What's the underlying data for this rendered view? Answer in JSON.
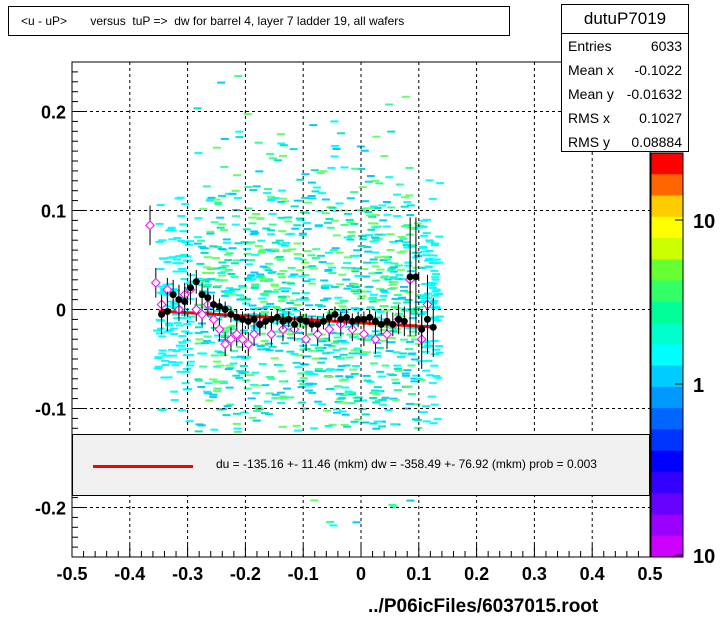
{
  "title": "<u - uP>       versus  tuP =>  dw for barrel 4, layer 7 ladder 19, all wafers",
  "stats": {
    "name": "dutuP7019",
    "rows": [
      {
        "label": "Entries",
        "value": "6033"
      },
      {
        "label": "Mean x",
        "value": "-0.1022"
      },
      {
        "label": "Mean y",
        "value": "-0.01632"
      },
      {
        "label": "RMS x",
        "value": "0.1027"
      },
      {
        "label": "RMS y",
        "value": "0.08884"
      }
    ]
  },
  "legend": {
    "text": "du = -135.16 +- 11.46 (mkm) dw = -358.49 +- 76.92 (mkm) prob = 0.003",
    "line_color": "#ff0000"
  },
  "footer": "../P06icFiles/6037015.root",
  "colorbar": {
    "tick_labels": [
      "10",
      "1",
      "10"
    ]
  },
  "chart_data": {
    "type": "scatter",
    "xlim": [
      -0.5,
      0.5
    ],
    "ylim": [
      -0.25,
      0.25
    ],
    "x_ticks": [
      "-0.5",
      "-0.4",
      "-0.3",
      "-0.2",
      "-0.1",
      "0",
      "0.1",
      "0.2",
      "0.3",
      "0.4",
      "0.5"
    ],
    "y_ticks": [
      "0.2",
      "0.1",
      "0",
      "-0.1",
      "-0.2"
    ],
    "y_tick_values": [
      0.2,
      0.1,
      0,
      -0.1,
      -0.2
    ],
    "grid": true,
    "fit_line": {
      "x": [
        -0.35,
        0.12
      ],
      "y": [
        -0.0015,
        -0.0175
      ],
      "color": "#ff0000"
    },
    "black_points": {
      "x": [
        -0.345,
        -0.335,
        -0.325,
        -0.315,
        -0.305,
        -0.295,
        -0.285,
        -0.275,
        -0.265,
        -0.255,
        -0.245,
        -0.235,
        -0.225,
        -0.215,
        -0.205,
        -0.195,
        -0.185,
        -0.175,
        -0.165,
        -0.155,
        -0.145,
        -0.135,
        -0.125,
        -0.115,
        -0.105,
        -0.095,
        -0.085,
        -0.075,
        -0.065,
        -0.055,
        -0.045,
        -0.035,
        -0.025,
        -0.015,
        -0.005,
        0.005,
        0.015,
        0.025,
        0.035,
        0.045,
        0.055,
        0.065,
        0.075,
        0.085,
        0.095,
        0.105,
        0.115,
        0.125
      ],
      "y": [
        -0.005,
        -0.002,
        0.015,
        0.01,
        0.008,
        0.022,
        0.028,
        0.015,
        0.012,
        0.005,
        0.003,
        0.0,
        -0.005,
        -0.008,
        -0.01,
        -0.012,
        -0.01,
        -0.015,
        -0.012,
        -0.01,
        -0.008,
        -0.012,
        -0.01,
        -0.015,
        -0.01,
        -0.012,
        -0.015,
        -0.015,
        -0.012,
        -0.008,
        -0.005,
        -0.01,
        -0.008,
        -0.012,
        -0.01,
        -0.01,
        -0.008,
        -0.012,
        -0.015,
        -0.012,
        -0.015,
        -0.01,
        -0.012,
        0.033,
        0.033,
        -0.02,
        -0.01,
        -0.018
      ],
      "err": [
        0.02,
        0.02,
        0.015,
        0.015,
        0.015,
        0.015,
        0.012,
        0.012,
        0.01,
        0.01,
        0.008,
        0.008,
        0.008,
        0.008,
        0.008,
        0.008,
        0.008,
        0.008,
        0.008,
        0.008,
        0.008,
        0.008,
        0.008,
        0.008,
        0.008,
        0.008,
        0.008,
        0.008,
        0.008,
        0.008,
        0.008,
        0.008,
        0.008,
        0.008,
        0.008,
        0.008,
        0.008,
        0.01,
        0.01,
        0.01,
        0.012,
        0.012,
        0.015,
        0.06,
        0.06,
        0.02,
        0.035,
        0.03
      ]
    },
    "magenta_points": {
      "x": [
        -0.365,
        -0.355,
        -0.345,
        -0.335,
        -0.315,
        -0.305,
        -0.295,
        -0.285,
        -0.275,
        -0.265,
        -0.255,
        -0.245,
        -0.235,
        -0.225,
        -0.215,
        -0.205,
        -0.195,
        -0.185,
        -0.175,
        -0.155,
        -0.135,
        -0.115,
        -0.095,
        -0.075,
        -0.055,
        -0.035,
        -0.015,
        0.005,
        0.025,
        0.045,
        0.065,
        0.085,
        0.105,
        0.115
      ],
      "y": [
        0.085,
        0.027,
        0.005,
        0.02,
        0.0,
        0.015,
        0.02,
        0.0,
        -0.005,
        0.005,
        -0.01,
        -0.02,
        -0.035,
        -0.03,
        -0.025,
        -0.03,
        -0.035,
        -0.025,
        -0.015,
        -0.025,
        -0.02,
        -0.02,
        -0.03,
        -0.025,
        -0.02,
        -0.015,
        -0.02,
        -0.025,
        -0.03,
        -0.025,
        -0.01,
        0.03,
        -0.03,
        0.005
      ],
      "err": [
        0.02,
        0.015,
        0.01,
        0.012,
        0.012,
        0.012,
        0.015,
        0.012,
        0.012,
        0.012,
        0.012,
        0.012,
        0.012,
        0.012,
        0.012,
        0.012,
        0.012,
        0.012,
        0.012,
        0.012,
        0.012,
        0.012,
        0.012,
        0.012,
        0.012,
        0.012,
        0.012,
        0.012,
        0.015,
        0.015,
        0.015,
        0.03,
        0.03,
        0.03
      ]
    }
  }
}
